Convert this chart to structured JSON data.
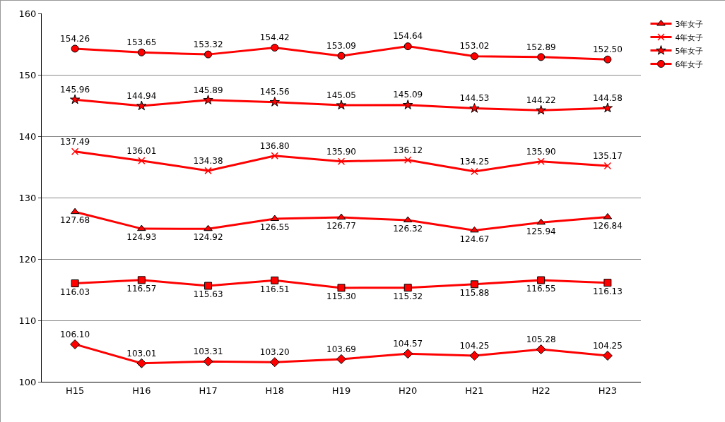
{
  "chart_data": {
    "type": "line",
    "categories": [
      "H15",
      "H16",
      "H17",
      "H18",
      "H19",
      "H20",
      "H21",
      "H22",
      "H23"
    ],
    "series": [
      {
        "color": "#ff0000",
        "marker": "diamond",
        "values": [
          106.1,
          103.01,
          103.31,
          103.2,
          103.69,
          104.57,
          104.25,
          105.28,
          104.25
        ],
        "value_labels": [
          "106.10",
          "103.01",
          "103.31",
          "103.20",
          "103.69",
          "104.57",
          "104.25",
          "105.28",
          "104.25"
        ]
      },
      {
        "color": "#ff0000",
        "marker": "square",
        "values": [
          116.03,
          116.57,
          115.63,
          116.51,
          115.3,
          115.32,
          115.88,
          116.55,
          116.13
        ],
        "value_labels": [
          "116.03",
          "116.57",
          "115.63",
          "116.51",
          "115.30",
          "115.32",
          "115.88",
          "116.55",
          "116.13"
        ]
      },
      {
        "name": "3年女子",
        "color": "#ff0000",
        "marker": "triangle",
        "values": [
          127.68,
          124.93,
          124.92,
          126.55,
          126.77,
          126.32,
          124.67,
          125.94,
          126.84
        ],
        "value_labels": [
          "127.68",
          "124.93",
          "124.92",
          "126.55",
          "126.77",
          "126.32",
          "124.67",
          "125.94",
          "126.84"
        ]
      },
      {
        "name": "4年女子",
        "color": "#ff0000",
        "marker": "cross",
        "values": [
          137.49,
          136.01,
          134.38,
          136.8,
          135.9,
          136.12,
          134.25,
          135.9,
          135.17
        ],
        "value_labels": [
          "137.49",
          "136.01",
          "134.38",
          "136.80",
          "135.90",
          "136.12",
          "134.25",
          "135.90",
          "135.17"
        ]
      },
      {
        "name": "5年女子",
        "color": "#ff0000",
        "marker": "star",
        "values": [
          145.96,
          144.94,
          145.89,
          145.56,
          145.05,
          145.09,
          144.53,
          144.22,
          144.58
        ],
        "value_labels": [
          "145.96",
          "144.94",
          "145.89",
          "145.56",
          "145.05",
          "145.09",
          "144.53",
          "144.22",
          "144.58"
        ]
      },
      {
        "name": "6年女子",
        "color": "#ff0000",
        "marker": "circle",
        "values": [
          154.26,
          153.65,
          153.32,
          154.42,
          153.09,
          154.64,
          153.02,
          152.89,
          152.5
        ],
        "value_labels": [
          "154.26",
          "153.65",
          "153.32",
          "154.42",
          "153.09",
          "154.64",
          "153.02",
          "152.89",
          "152.50"
        ]
      }
    ],
    "ylim": [
      100,
      160
    ],
    "yticks": [
      100,
      110,
      120,
      130,
      140,
      150,
      160
    ],
    "grid": "y",
    "legend": "top right"
  }
}
